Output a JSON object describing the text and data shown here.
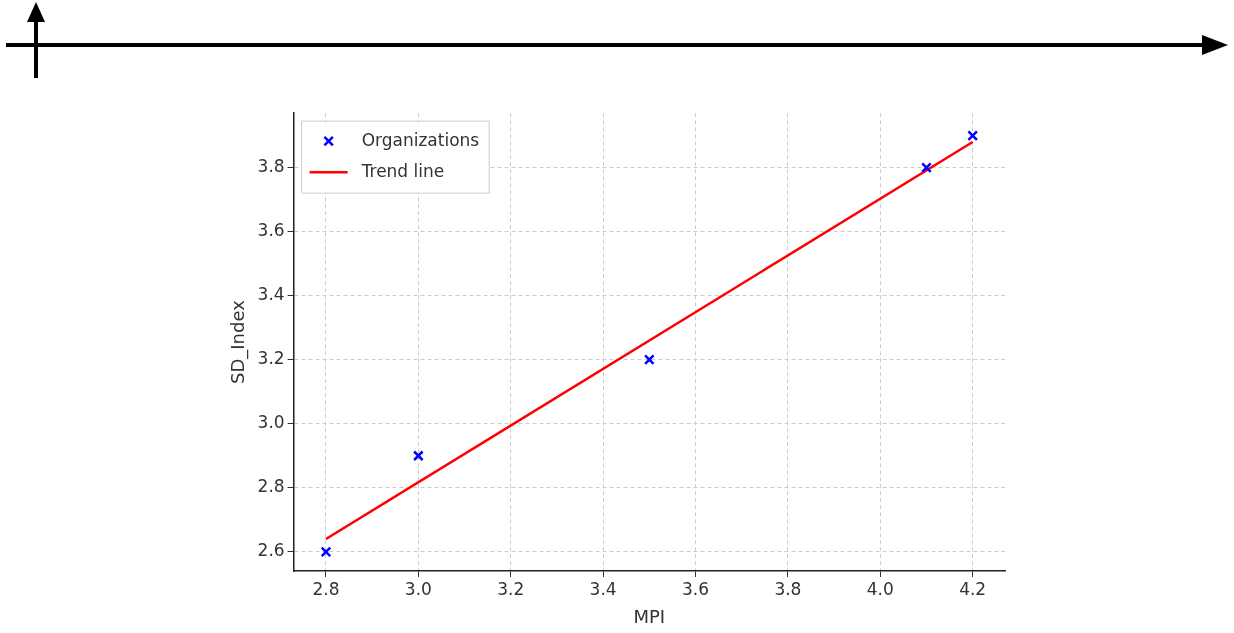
{
  "chart_data": {
    "type": "scatter",
    "xlabel": "MPI",
    "ylabel": "SD_Index",
    "xlim": [
      2.73,
      4.27
    ],
    "xticks": [
      {
        "value": 2.8,
        "label": "2.8"
      },
      {
        "value": 3.0,
        "label": "3.0"
      },
      {
        "value": 3.2,
        "label": "3.2"
      },
      {
        "value": 3.4,
        "label": "3.4"
      },
      {
        "value": 3.6,
        "label": "3.6"
      },
      {
        "value": 3.8,
        "label": "3.8"
      },
      {
        "value": 4.0,
        "label": "4.0"
      },
      {
        "value": 4.2,
        "label": "4.2"
      }
    ],
    "ylim": [
      2.54,
      3.97
    ],
    "yticks": [
      {
        "value": 2.6,
        "label": "2.6"
      },
      {
        "value": 2.8,
        "label": "2.8"
      },
      {
        "value": 3.0,
        "label": "3.0"
      },
      {
        "value": 3.2,
        "label": "3.2"
      },
      {
        "value": 3.4,
        "label": "3.4"
      },
      {
        "value": 3.6,
        "label": "3.6"
      },
      {
        "value": 3.8,
        "label": "3.8"
      }
    ],
    "grid": true,
    "legend": "top left",
    "series": [
      {
        "name": "Organizations",
        "type": "scatter",
        "marker": "cross",
        "color": "#0000ff",
        "x": [
          2.8,
          3.0,
          3.5,
          4.1,
          4.2
        ],
        "values": [
          2.6,
          2.9,
          3.2,
          3.8,
          3.9
        ]
      },
      {
        "name": "Trend line",
        "type": "line",
        "color": "#ff0000",
        "x": [
          2.8,
          4.2
        ],
        "values": [
          2.64,
          3.88
        ]
      }
    ]
  }
}
